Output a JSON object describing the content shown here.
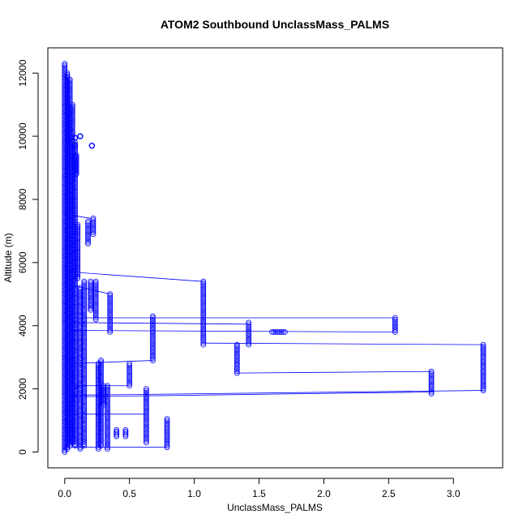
{
  "chart_data": {
    "type": "scatter",
    "title": "ATOM2 Southbound UnclassMass_PALMS",
    "xlabel": "UnclassMass_PALMS",
    "ylabel": "Altitude (m)",
    "xlim": [
      -0.13,
      3.38
    ],
    "ylim": [
      -500,
      12800
    ],
    "x_ticks": [
      0.0,
      0.5,
      1.0,
      1.5,
      2.0,
      2.5,
      3.0
    ],
    "x_tick_labels": [
      "0.0",
      "0.5",
      "1.0",
      "1.5",
      "2.0",
      "2.5",
      "3.0"
    ],
    "y_ticks": [
      0,
      2000,
      4000,
      6000,
      8000,
      10000,
      12000
    ],
    "y_tick_labels": [
      "0",
      "2000",
      "4000",
      "6000",
      "8000",
      "10000",
      "12000"
    ],
    "grid": false,
    "legend": "none",
    "marker": "open-circle",
    "color": "#0000ff",
    "series": [
      {
        "segments": [
          {
            "x": [
              0.0,
              0.0
            ],
            "y": [
              0,
              12300
            ]
          },
          {
            "x": [
              0.02,
              0.02
            ],
            "y": [
              100,
              12000
            ]
          },
          {
            "x": [
              0.04,
              0.04
            ],
            "y": [
              200,
              11800
            ]
          },
          {
            "x": [
              0.06,
              0.06
            ],
            "y": [
              300,
              11000
            ]
          },
          {
            "x": [
              0.08,
              0.08
            ],
            "y": [
              200,
              9800
            ]
          },
          {
            "x": [
              0.09,
              0.09
            ],
            "y": [
              8800,
              9400
            ]
          },
          {
            "x": [
              0.1,
              0.1
            ],
            "y": [
              5500,
              7200
            ]
          },
          {
            "x": [
              0.12,
              0.12
            ],
            "y": [
              100,
              5200
            ]
          },
          {
            "x": [
              0.15,
              0.15
            ],
            "y": [
              200,
              5400
            ]
          },
          {
            "x": [
              0.18,
              0.18
            ],
            "y": [
              6600,
              7300
            ]
          },
          {
            "x": [
              0.2,
              0.2
            ],
            "y": [
              4500,
              5400
            ]
          },
          {
            "x": [
              0.22,
              0.22
            ],
            "y": [
              6900,
              7400
            ]
          },
          {
            "x": [
              0.24,
              0.24
            ],
            "y": [
              4200,
              5400
            ]
          },
          {
            "x": [
              0.26,
              0.26
            ],
            "y": [
              100,
              2800
            ]
          },
          {
            "x": [
              0.28,
              0.28
            ],
            "y": [
              200,
              2900
            ]
          },
          {
            "x": [
              0.3,
              0.3
            ],
            "y": [
              1500,
              2100
            ]
          },
          {
            "x": [
              0.33,
              0.33
            ],
            "y": [
              100,
              2100
            ]
          },
          {
            "x": [
              0.35,
              0.35
            ],
            "y": [
              3800,
              5000
            ]
          },
          {
            "x": [
              0.4,
              0.4
            ],
            "y": [
              500,
              700
            ]
          },
          {
            "x": [
              0.47,
              0.47
            ],
            "y": [
              500,
              700
            ]
          },
          {
            "x": [
              0.5,
              0.5
            ],
            "y": [
              2100,
              2800
            ]
          },
          {
            "x": [
              0.63,
              0.63
            ],
            "y": [
              300,
              2000
            ]
          },
          {
            "x": [
              0.68,
              0.68
            ],
            "y": [
              2900,
              4300
            ]
          },
          {
            "x": [
              0.79,
              0.79
            ],
            "y": [
              150,
              1050
            ]
          },
          {
            "x": [
              1.07,
              1.07
            ],
            "y": [
              3400,
              5400
            ]
          },
          {
            "x": [
              1.33,
              1.33
            ],
            "y": [
              2500,
              3400
            ]
          },
          {
            "x": [
              1.42,
              1.42
            ],
            "y": [
              3400,
              4100
            ]
          },
          {
            "x": [
              1.6,
              1.7
            ],
            "y": [
              3800,
              3800
            ]
          },
          {
            "x": [
              2.55,
              2.55
            ],
            "y": [
              3800,
              4250
            ]
          },
          {
            "x": [
              2.83,
              2.83
            ],
            "y": [
              1850,
              2550
            ]
          },
          {
            "x": [
              3.23,
              3.23
            ],
            "y": [
              1950,
              3400
            ]
          }
        ],
        "outliers": [
          {
            "x": 0.12,
            "y": 10000
          },
          {
            "x": 0.08,
            "y": 9950
          },
          {
            "x": 0.21,
            "y": 9700
          },
          {
            "x": 0.08,
            "y": 9700
          }
        ],
        "connectors": [
          {
            "x": [
              0.05,
              1.07
            ],
            "y": [
              5700,
              5400
            ]
          },
          {
            "x": [
              0.05,
              0.68
            ],
            "y": [
              4250,
              4250
            ]
          },
          {
            "x": [
              0.68,
              2.55
            ],
            "y": [
              4250,
              4250
            ]
          },
          {
            "x": [
              0.05,
              1.42
            ],
            "y": [
              4100,
              4050
            ]
          },
          {
            "x": [
              0.05,
              2.55
            ],
            "y": [
              3850,
              3800
            ]
          },
          {
            "x": [
              1.07,
              3.23
            ],
            "y": [
              3450,
              3400
            ]
          },
          {
            "x": [
              1.33,
              2.83
            ],
            "y": [
              2500,
              2550
            ]
          },
          {
            "x": [
              0.05,
              3.23
            ],
            "y": [
              1800,
              1950
            ]
          },
          {
            "x": [
              0.05,
              2.83
            ],
            "y": [
              1750,
              1900
            ]
          },
          {
            "x": [
              0.05,
              0.79
            ],
            "y": [
              150,
              150
            ]
          },
          {
            "x": [
              0.05,
              0.68
            ],
            "y": [
              2800,
              2900
            ]
          },
          {
            "x": [
              0.05,
              0.2
            ],
            "y": [
              7500,
              7400
            ]
          },
          {
            "x": [
              0.05,
              0.35
            ],
            "y": [
              5300,
              5000
            ]
          },
          {
            "x": [
              0.08,
              0.12
            ],
            "y": [
              2000,
              2100
            ]
          },
          {
            "x": [
              0.05,
              0.63
            ],
            "y": [
              1200,
              1200
            ]
          },
          {
            "x": [
              0.05,
              0.5
            ],
            "y": [
              2100,
              2100
            ]
          }
        ]
      }
    ]
  }
}
